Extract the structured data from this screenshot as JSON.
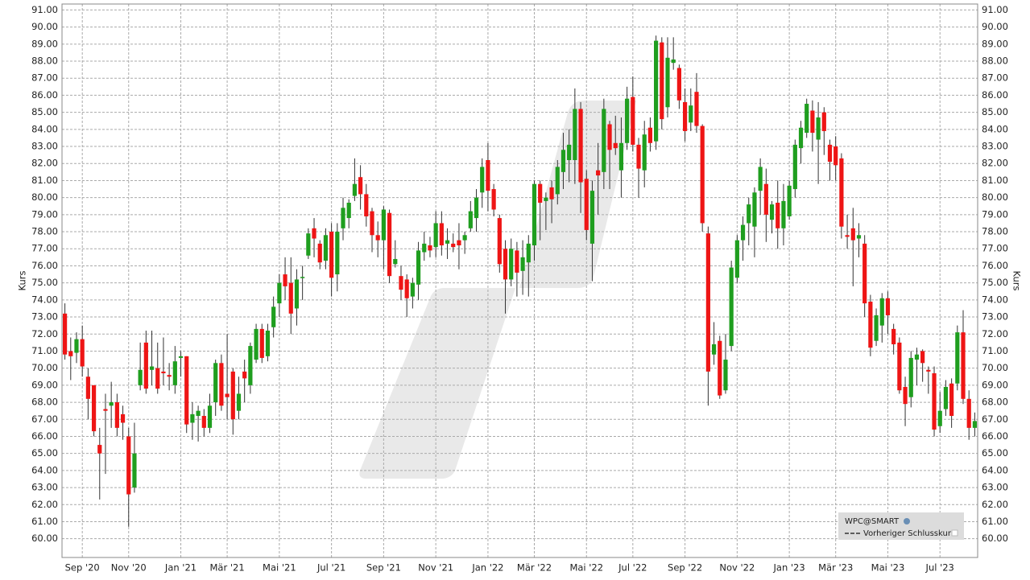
{
  "chart_data": {
    "type": "candlestick",
    "ylabel": "Kurs",
    "y2label": "Kurs",
    "ylim": [
      58.9,
      91.35
    ],
    "yticks": [
      {
        "value": 60,
        "label": "60.00"
      },
      {
        "value": 61,
        "label": "61.00"
      },
      {
        "value": 62,
        "label": "62.00"
      },
      {
        "value": 63,
        "label": "63.00"
      },
      {
        "value": 64,
        "label": "64.00"
      },
      {
        "value": 65,
        "label": "65.00"
      },
      {
        "value": 66,
        "label": "66.00"
      },
      {
        "value": 67,
        "label": "67.00"
      },
      {
        "value": 68,
        "label": "68.00"
      },
      {
        "value": 69,
        "label": "69.00"
      },
      {
        "value": 70,
        "label": "70.00"
      },
      {
        "value": 71,
        "label": "71.00"
      },
      {
        "value": 72,
        "label": "72.00"
      },
      {
        "value": 73,
        "label": "73.00"
      },
      {
        "value": 74,
        "label": "74.00"
      },
      {
        "value": 75,
        "label": "75.00"
      },
      {
        "value": 76,
        "label": "76.00"
      },
      {
        "value": 77,
        "label": "77.00"
      },
      {
        "value": 78,
        "label": "78.00"
      },
      {
        "value": 79,
        "label": "79.00"
      },
      {
        "value": 80,
        "label": "80.00"
      },
      {
        "value": 81,
        "label": "81.00"
      },
      {
        "value": 82,
        "label": "82.00"
      },
      {
        "value": 83,
        "label": "83.00"
      },
      {
        "value": 84,
        "label": "84.00"
      },
      {
        "value": 85,
        "label": "85.00"
      },
      {
        "value": 86,
        "label": "86.00"
      },
      {
        "value": 87,
        "label": "87.00"
      },
      {
        "value": 88,
        "label": "88.00"
      },
      {
        "value": 89,
        "label": "89.00"
      },
      {
        "value": 90,
        "label": "90.00"
      },
      {
        "value": 91,
        "label": "91.00"
      }
    ],
    "grid": true,
    "legend": "lower right",
    "categories": [
      null,
      null,
      null,
      "Sep '20",
      null,
      null,
      null,
      null,
      null,
      null,
      null,
      "Nov '20",
      null,
      null,
      null,
      null,
      null,
      null,
      null,
      null,
      "Jan '21",
      null,
      null,
      null,
      null,
      null,
      null,
      null,
      "Mär '21",
      null,
      null,
      null,
      null,
      null,
      null,
      null,
      null,
      "Mai '21",
      null,
      null,
      null,
      null,
      null,
      null,
      null,
      null,
      "Jul '21",
      null,
      null,
      null,
      null,
      null,
      null,
      null,
      null,
      "Sep '21",
      null,
      null,
      null,
      null,
      null,
      null,
      null,
      null,
      "Nov '21",
      null,
      null,
      null,
      null,
      null,
      null,
      null,
      null,
      "Jan '22",
      null,
      null,
      null,
      null,
      null,
      null,
      null,
      "Mär '22",
      null,
      null,
      null,
      null,
      null,
      null,
      null,
      null,
      "Mai '22",
      null,
      null,
      null,
      null,
      null,
      null,
      null,
      "Jul '22",
      null,
      null,
      null,
      null,
      null,
      null,
      null,
      null,
      "Sep '22",
      null,
      null,
      null,
      null,
      null,
      null,
      null,
      null,
      "Nov '22",
      null,
      null,
      null,
      null,
      null,
      null,
      null,
      null,
      "Jan '23",
      null,
      null,
      null,
      null,
      null,
      null,
      null,
      "Mär '23",
      null,
      null,
      null,
      null,
      null,
      null,
      null,
      null,
      "Mai '23",
      null,
      null,
      null,
      null,
      null,
      null,
      null,
      null,
      "Jul '23",
      null,
      null,
      null,
      null,
      null,
      null
    ],
    "series": [
      {
        "name": "WPC@SMART",
        "up_color": "#1f9e1f",
        "down_color": "#ee1515",
        "wick_color": "#333333",
        "open": [
          73.2,
          71.0,
          70.9,
          71.7,
          69.5,
          69.0,
          65.5,
          67.6,
          67.8,
          68.0,
          67.3,
          66.0,
          63.0,
          69.0,
          71.5,
          69.9,
          70.0,
          69.8,
          69.6,
          69.0,
          70.6,
          70.7,
          66.8,
          67.2,
          67.2,
          66.5,
          68.0,
          70.3,
          68.5,
          69.8,
          67.5,
          69.8,
          69.0,
          70.5,
          72.3,
          70.7,
          72.4,
          73.8,
          75.5,
          75.0,
          73.5,
          75.3,
          76.6,
          78.2,
          77.3,
          76.3,
          78.0,
          75.5,
          78.2,
          78.8,
          80.1,
          81.2,
          80.2,
          79.2,
          77.8,
          77.5,
          79.1,
          76.1,
          75.4,
          75.2,
          74.2,
          74.9,
          76.8,
          77.2,
          77.1,
          78.5,
          77.3,
          77.3,
          77.5,
          77.5,
          78.2,
          78.8,
          80.3,
          82.2,
          80.5,
          78.8,
          77.0,
          75.2,
          76.9,
          75.7,
          76.2,
          77.2,
          80.8,
          79.8,
          80.6,
          80.2,
          81.5,
          82.2,
          82.2,
          85.2,
          81.1,
          77.3,
          81.6,
          81.5,
          84.3,
          83.2,
          81.6,
          83.2,
          85.9,
          83.1,
          81.6,
          84.1,
          83.3,
          89.1,
          85.3,
          87.9,
          87.6,
          85.6,
          84.4,
          86.2,
          84.2,
          77.9,
          70.8,
          71.6,
          68.7,
          71.3,
          75.3,
          77.5,
          78.5,
          78.3,
          80.4,
          80.8,
          78.7,
          79.7,
          78.2,
          78.9,
          80.5,
          82.9,
          83.8,
          85.1,
          83.4,
          85.0,
          83.1,
          83.0,
          82.3,
          77.8,
          78.2,
          77.6,
          77.3,
          73.9,
          71.6,
          72.5,
          74.1,
          72.3,
          71.5,
          68.9,
          68.3,
          70.5,
          71.0,
          69.9,
          69.7,
          66.6,
          67.6,
          69.1,
          69.1,
          72.1,
          68.2,
          66.5
        ],
        "high": [
          73.8,
          71.8,
          72.1,
          72.5,
          70.0,
          69.0,
          66.5,
          68.5,
          69.2,
          68.5,
          67.8,
          66.5,
          66.8,
          71.5,
          72.2,
          72.2,
          71.5,
          71.8,
          70.3,
          71.3,
          71.0,
          70.7,
          68.0,
          67.8,
          67.6,
          68.5,
          70.5,
          70.8,
          72.0,
          70.0,
          69.5,
          70.5,
          71.5,
          72.6,
          72.6,
          72.6,
          74.2,
          75.5,
          76.5,
          76.5,
          75.8,
          76.0,
          78.2,
          78.8,
          77.5,
          78.2,
          78.5,
          78.5,
          80.0,
          79.9,
          82.3,
          81.9,
          80.8,
          79.4,
          78.6,
          79.5,
          79.3,
          77.5,
          76.0,
          75.5,
          75.3,
          77.4,
          78.0,
          77.7,
          79.2,
          79.2,
          78.2,
          77.9,
          78.5,
          78.0,
          79.8,
          80.5,
          82.3,
          83.2,
          80.8,
          79.0,
          77.5,
          77.6,
          77.4,
          77.5,
          77.8,
          81.0,
          81.0,
          80.3,
          81.0,
          82.2,
          83.8,
          84.0,
          86.4,
          85.6,
          81.6,
          81.0,
          83.2,
          85.8,
          84.5,
          84.8,
          84.7,
          86.5,
          87.1,
          83.5,
          84.5,
          84.7,
          89.5,
          89.4,
          89.4,
          89.4,
          87.8,
          86.4,
          86.4,
          87.3,
          84.3,
          78.3,
          72.7,
          71.9,
          72.0,
          76.3,
          77.8,
          78.9,
          80.0,
          80.6,
          82.3,
          81.7,
          79.8,
          81.0,
          80.8,
          81.0,
          83.4,
          84.5,
          85.8,
          85.7,
          85.6,
          85.3,
          83.4,
          83.6,
          82.6,
          79.0,
          79.4,
          78.5,
          77.8,
          74.3,
          73.5,
          74.4,
          74.5,
          72.6,
          71.8,
          69.5,
          71.0,
          71.2,
          71.1,
          70.1,
          70.1,
          68.6,
          69.3,
          69.4,
          72.5,
          73.4,
          68.7,
          67.4
        ],
        "low": [
          70.5,
          69.3,
          70.3,
          69.5,
          67.0,
          66.0,
          62.3,
          63.8,
          66.5,
          66.0,
          65.8,
          60.7,
          62.7,
          68.7,
          68.5,
          69.0,
          68.5,
          69.0,
          68.7,
          68.5,
          69.5,
          66.2,
          65.8,
          65.7,
          66.0,
          66.2,
          67.2,
          67.5,
          67.0,
          66.1,
          67.0,
          68.0,
          68.5,
          70.3,
          70.3,
          70.4,
          71.8,
          73.0,
          74.0,
          72.0,
          72.5,
          74.0,
          76.4,
          76.5,
          75.8,
          75.8,
          74.2,
          74.5,
          77.5,
          78.2,
          79.8,
          79.3,
          78.3,
          76.8,
          76.5,
          75.8,
          75.0,
          75.9,
          74.0,
          73.0,
          73.5,
          74.0,
          76.3,
          76.5,
          76.5,
          76.6,
          76.4,
          76.8,
          75.8,
          76.7,
          78.0,
          78.0,
          79.4,
          79.2,
          78.9,
          75.6,
          73.2,
          74.8,
          74.2,
          74.3,
          74.2,
          76.3,
          77.5,
          78.1,
          78.5,
          79.6,
          80.5,
          80.9,
          80.8,
          79.1,
          77.5,
          75.1,
          79.0,
          80.5,
          80.5,
          82.5,
          80.0,
          82.8,
          82.7,
          80.0,
          80.6,
          82.7,
          82.8,
          84.0,
          84.7,
          87.5,
          85.2,
          83.3,
          83.9,
          83.8,
          78.0,
          67.8,
          70.2,
          68.2,
          68.5,
          71.0,
          75.0,
          76.3,
          77.2,
          76.5,
          79.0,
          77.4,
          77.9,
          77.0,
          77.2,
          78.7,
          80.0,
          82.0,
          83.5,
          82.7,
          80.8,
          82.5,
          81.0,
          81.0,
          77.6,
          77.0,
          74.8,
          76.5,
          73.0,
          70.7,
          71.3,
          71.5,
          72.0,
          70.8,
          68.5,
          66.6,
          67.7,
          69.0,
          69.2,
          68.5,
          66.0,
          66.2,
          67.2,
          66.5,
          68.7,
          67.9,
          65.8,
          66.0
        ],
        "close": [
          70.8,
          70.7,
          71.7,
          70.1,
          68.2,
          66.3,
          65.0,
          67.5,
          68.0,
          66.5,
          66.8,
          62.6,
          65.0,
          69.9,
          68.8,
          70.1,
          68.8,
          69.7,
          69.5,
          70.4,
          70.7,
          66.7,
          67.3,
          67.5,
          66.5,
          67.8,
          70.3,
          67.8,
          68.3,
          67.0,
          68.5,
          69.4,
          71.3,
          72.3,
          70.6,
          72.2,
          73.6,
          75.0,
          74.8,
          73.2,
          75.2,
          75.35,
          77.9,
          77.6,
          76.2,
          77.8,
          75.3,
          78.0,
          79.4,
          79.7,
          80.8,
          80.2,
          78.9,
          77.8,
          77.5,
          79.3,
          75.4,
          76.4,
          74.6,
          74.1,
          75.0,
          76.9,
          77.3,
          76.9,
          78.5,
          77.2,
          77.5,
          77.1,
          77.2,
          77.8,
          79.2,
          80.0,
          81.8,
          80.4,
          79.3,
          76.1,
          75.2,
          77.0,
          75.6,
          76.5,
          77.3,
          80.8,
          79.7,
          80.0,
          79.9,
          81.8,
          82.8,
          83.1,
          85.2,
          80.9,
          78.1,
          80.4,
          81.3,
          85.2,
          82.8,
          82.9,
          83.2,
          85.8,
          83.1,
          81.7,
          83.7,
          83.2,
          89.2,
          84.6,
          88.2,
          88.1,
          85.7,
          83.9,
          85.4,
          84.2,
          78.5,
          69.8,
          71.4,
          68.4,
          70.5,
          75.9,
          77.5,
          78.4,
          79.6,
          80.3,
          81.8,
          79.0,
          79.6,
          78.2,
          79.8,
          80.7,
          83.1,
          84.1,
          85.5,
          83.8,
          84.7,
          83.9,
          82.1,
          81.9,
          78.3,
          77.7,
          77.5,
          77.8,
          73.8,
          71.2,
          73.1,
          74.1,
          73.1,
          71.4,
          68.7,
          67.9,
          70.6,
          70.8,
          70.3,
          69.8,
          66.4,
          67.5,
          68.9,
          67.2,
          72.1,
          68.2,
          66.5,
          66.9
        ]
      },
      {
        "name": "Vorheriger Schlusskurs",
        "color": "#333333",
        "style": "dashed"
      }
    ]
  }
}
